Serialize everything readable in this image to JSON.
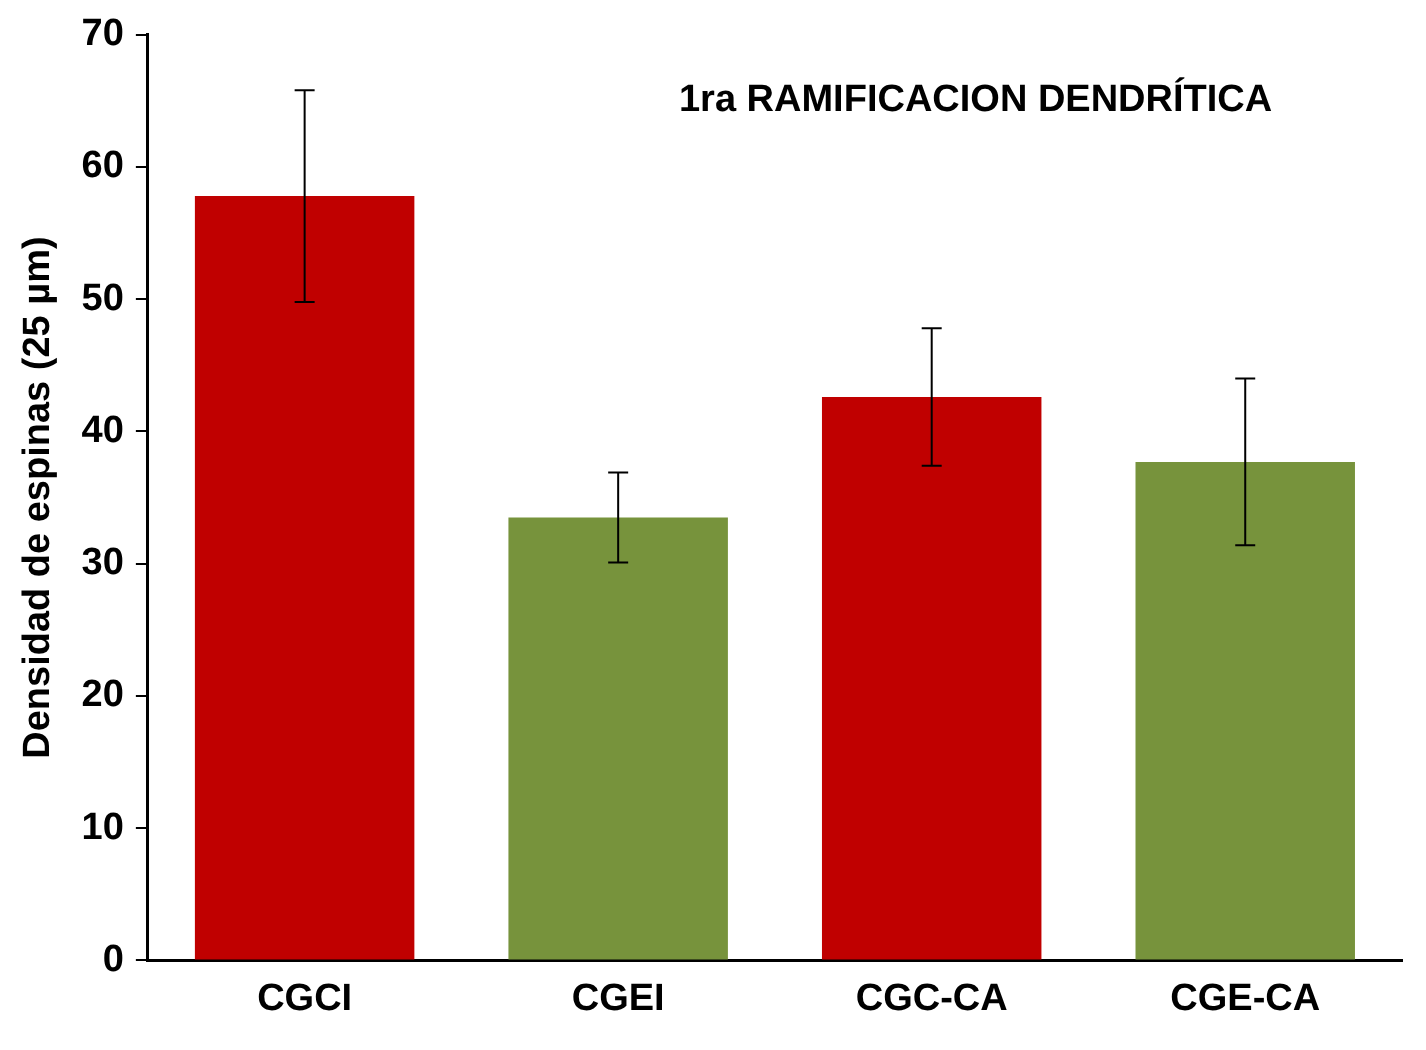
{
  "chart_data": {
    "type": "bar",
    "title": "1ra RAMIFICACION DENDRÍTICA",
    "ylabel": "Densidad de espinas (25 µm)",
    "categories": [
      "CGCI",
      "CGEI",
      "CGC-CA",
      "CGE-CA"
    ],
    "values": [
      57.8,
      33.5,
      42.6,
      37.7
    ],
    "colors": [
      "#c00000",
      "#77933c",
      "#c00000",
      "#77933c"
    ],
    "errors": [
      8,
      3.4,
      5.2,
      6.3
    ],
    "ylim": [
      0,
      70
    ],
    "yticks": [
      0,
      10,
      20,
      30,
      40,
      50,
      60,
      70
    ],
    "grid": false,
    "legend": false
  }
}
